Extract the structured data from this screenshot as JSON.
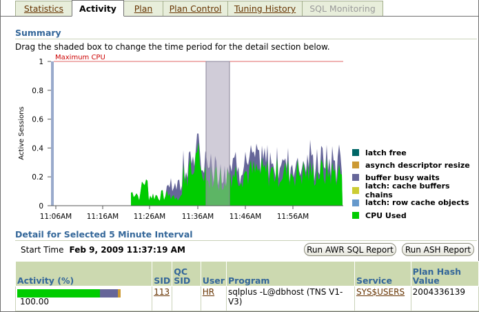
{
  "tabs": [
    {
      "label": "Statistics",
      "state": "link"
    },
    {
      "label": "Activity",
      "state": "active"
    },
    {
      "label": "Plan",
      "state": "link"
    },
    {
      "label": "Plan Control",
      "state": "link"
    },
    {
      "label": "Tuning History",
      "state": "link"
    },
    {
      "label": "SQL Monitoring",
      "state": "disabled"
    }
  ],
  "summary": {
    "title": "Summary",
    "instruction": "Drag the shaded box to change the time period for the detail section below."
  },
  "chart_data": {
    "type": "area",
    "ylabel": "Active Sessions",
    "ylim": [
      0,
      1
    ],
    "yticks": [
      "0",
      "0.2",
      "0.4",
      "0.6",
      "0.8",
      "1"
    ],
    "xticks": [
      "11:06AM",
      "11:16AM",
      "11:26AM",
      "11:36AM",
      "11:46AM",
      "11:56AM"
    ],
    "max_line_label": "Maximum CPU",
    "max_line_value": 1,
    "selection_range": [
      "11:37",
      "11:42"
    ],
    "series": [
      {
        "name": "latch free",
        "color": "#006666"
      },
      {
        "name": "asynch descriptor resize",
        "color": "#cc9933"
      },
      {
        "name": "buffer busy waits",
        "color": "#666699"
      },
      {
        "name": "latch: cache buffers chains",
        "color": "#cccc33"
      },
      {
        "name": "latch: row cache objects",
        "color": "#6699cc"
      },
      {
        "name": "CPU Used",
        "color": "#00cc00"
      }
    ]
  },
  "detail": {
    "title": "Detail for Selected 5 Minute Interval",
    "start_label": "Start Time",
    "start_value": "Feb 9, 2009 11:37:19 AM",
    "btn_sql": "Run AWR SQL Report",
    "btn_ash": "Run ASH Report"
  },
  "table": {
    "headers": {
      "activity": "Activity (%)",
      "sid": "SID",
      "qcsid": "QC SID",
      "user": "User",
      "program": "Program",
      "service": "Service",
      "planhash": "Plan Hash Value"
    },
    "row": {
      "activity_pct": "100.00",
      "activity_parts": [
        {
          "color": "#00cc00",
          "fraction": 0.8
        },
        {
          "color": "#666699",
          "fraction": 0.17
        },
        {
          "color": "#cc9933",
          "fraction": 0.03
        }
      ],
      "sid": "113",
      "qcsid": "",
      "user": "HR",
      "program": "sqlplus -L@dbhost (TNS V1-V3)",
      "service": "SYS$USERS",
      "planhash": "2004336139"
    }
  }
}
